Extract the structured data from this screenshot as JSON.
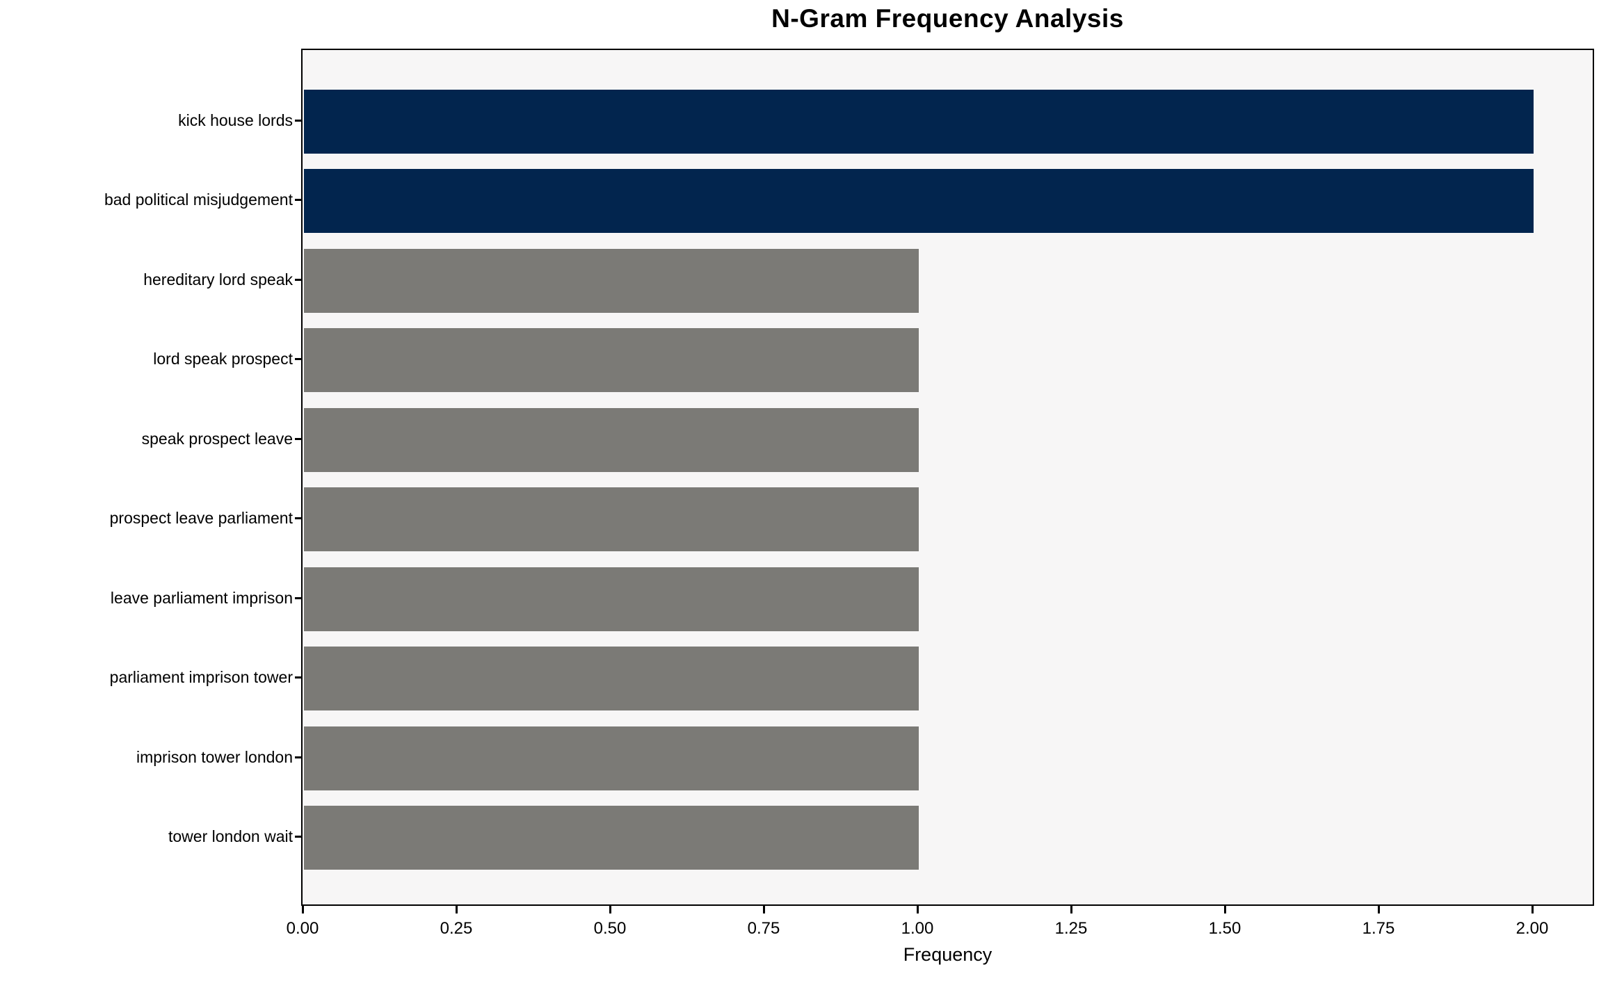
{
  "chart_data": {
    "type": "bar",
    "orientation": "horizontal",
    "title": "N-Gram Frequency Analysis",
    "xlabel": "Frequency",
    "ylabel": "",
    "categories": [
      "kick house lords",
      "bad political misjudgement",
      "hereditary lord speak",
      "lord speak prospect",
      "speak prospect leave",
      "prospect leave parliament",
      "leave parliament imprison",
      "parliament imprison tower",
      "imprison tower london",
      "tower london wait"
    ],
    "values": [
      2,
      2,
      1,
      1,
      1,
      1,
      1,
      1,
      1,
      1
    ],
    "bar_colors": [
      "#02254e",
      "#02254e",
      "#7b7a76",
      "#7b7a76",
      "#7b7a76",
      "#7b7a76",
      "#7b7a76",
      "#7b7a76",
      "#7b7a76",
      "#7b7a76"
    ],
    "highlight_color": "#02254e",
    "default_color": "#7b7a76",
    "plot_background": "#f7f6f6",
    "figure_background": "#ffffff",
    "spine_color": "#000000",
    "xlim": [
      0,
      2.1
    ],
    "xticks": [
      "0.00",
      "0.25",
      "0.50",
      "0.75",
      "1.00",
      "1.25",
      "1.50",
      "1.75",
      "2.00"
    ],
    "xtick_values": [
      0,
      0.25,
      0.5,
      0.75,
      1.0,
      1.25,
      1.5,
      1.75,
      2.0
    ],
    "grid": false,
    "legend": null
  }
}
